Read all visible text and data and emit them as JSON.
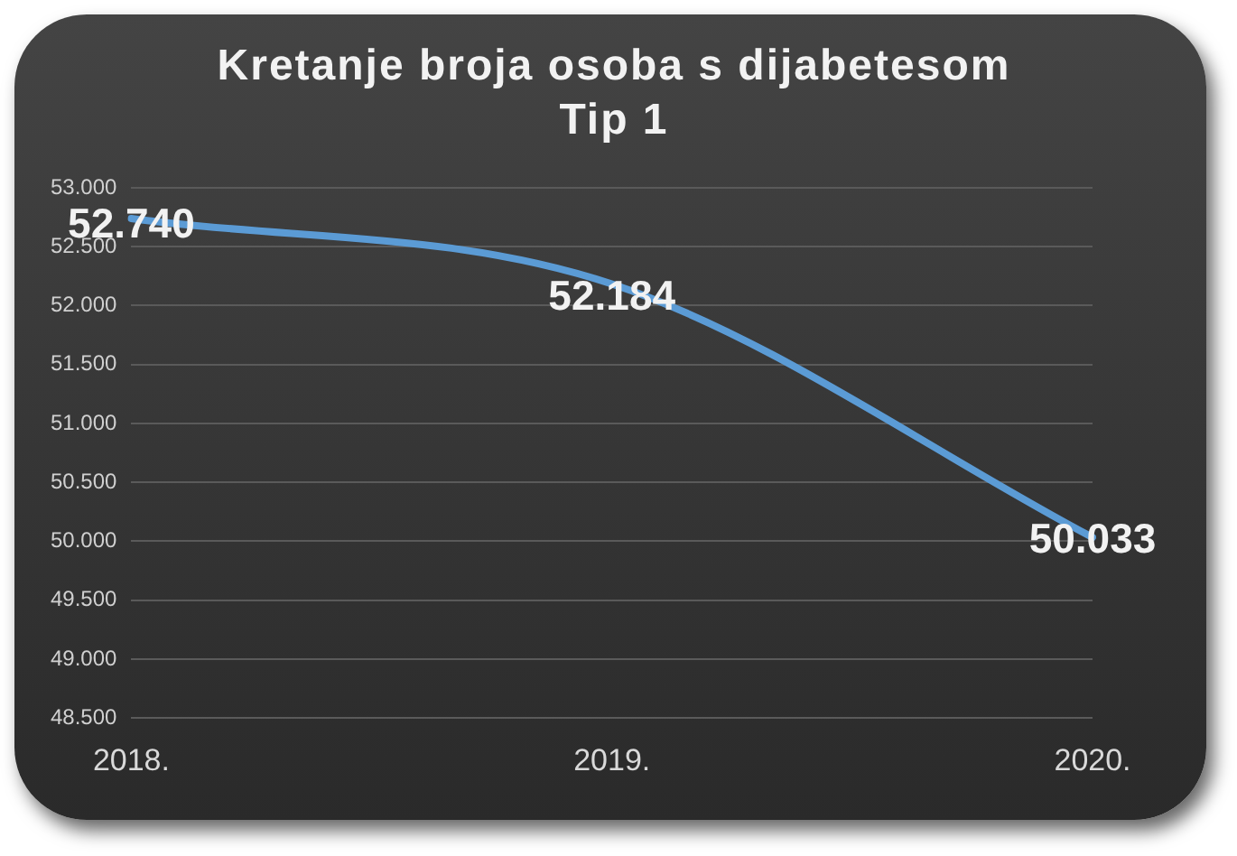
{
  "chart_data": {
    "type": "line",
    "title": "Kretanje broja osoba s dijabetesom Tip 1",
    "categories": [
      "2018.",
      "2019.",
      "2020."
    ],
    "series": [
      {
        "color": "#5b9bd5",
        "values": [
          52740,
          52184,
          50033
        ],
        "value_labels": [
          "52.740",
          "52.184",
          "50.033"
        ]
      }
    ],
    "ylim": [
      48500,
      53000
    ],
    "yticks": [
      {
        "value": 48500,
        "label": "48.500"
      },
      {
        "value": 49000,
        "label": "49.000"
      },
      {
        "value": 49500,
        "label": "49.500"
      },
      {
        "value": 50000,
        "label": "50.000"
      },
      {
        "value": 50500,
        "label": "50.500"
      },
      {
        "value": 51000,
        "label": "51.000"
      },
      {
        "value": 51500,
        "label": "51.500"
      },
      {
        "value": 52000,
        "label": "52.000"
      },
      {
        "value": 52500,
        "label": "52.500"
      },
      {
        "value": 53000,
        "label": "53.000"
      }
    ],
    "grid": "y",
    "legend": false,
    "marker": "none",
    "line_style": "solid"
  }
}
